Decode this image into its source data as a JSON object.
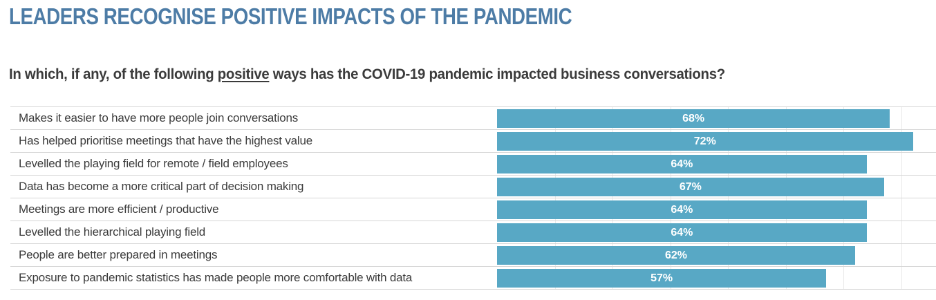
{
  "title": "LEADERS RECOGNISE POSITIVE IMPACTS OF THE PANDEMIC",
  "question": {
    "prefix": "In which, if any, of the following ",
    "underlined": "positive",
    "suffix": " ways has the COVID-19 pandemic impacted business conversations?"
  },
  "colors": {
    "title_color": "#4d7ca6",
    "text_color": "#3b3b3b",
    "bar_color": "#58a8c5",
    "bar_label_color": "#ffffff",
    "row_line_color": "#d6d6d6",
    "gridline_color": "#e9e9e9"
  },
  "chart_data": {
    "type": "bar",
    "orientation": "horizontal",
    "title": "LEADERS RECOGNISE POSITIVE IMPACTS OF THE PANDEMIC",
    "subtitle": "In which, if any, of the following positive ways has the COVID-19 pandemic impacted business conversations?",
    "xlabel": "",
    "ylabel": "",
    "value_format": "percent",
    "categories": [
      "Makes it easier to have more people join conversations",
      "Has helped prioritise meetings that have the highest value",
      "Levelled the playing field for remote / field employees",
      "Data has become a more critical part of decision making",
      "Meetings are more efficient / productive",
      "Levelled the hierarchical playing field",
      "People are better prepared in meetings",
      "Exposure to pandemic statistics has made people more comfortable with data"
    ],
    "values": [
      68,
      72,
      64,
      67,
      64,
      64,
      62,
      57
    ],
    "value_labels": [
      "68%",
      "72%",
      "64%",
      "67%",
      "64%",
      "64%",
      "62%",
      "57%"
    ],
    "axis_max_visible": 76,
    "gridlines_percent": [
      10,
      20,
      30,
      40,
      50,
      60,
      70
    ],
    "grid": "vertical-light",
    "legend": "none",
    "bar_labels_position": "center-inside"
  }
}
